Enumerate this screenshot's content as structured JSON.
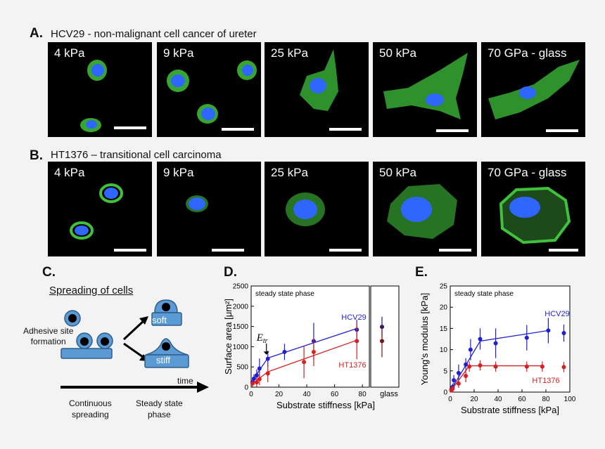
{
  "panelA": {
    "letter": "A.",
    "title": "HCV29 - non-malignant cell cancer of ureter",
    "tiles": [
      "4 kPa",
      "9 kPa",
      "25 kPa",
      "50 kPa",
      "70 GPa - glass"
    ]
  },
  "panelB": {
    "letter": "B.",
    "title": "HT1376 – transitional cell carcinoma",
    "tiles": [
      "4 kPa",
      "9 kPa",
      "25 kPa",
      "50 kPa",
      "70 GPa - glass"
    ]
  },
  "panelC": {
    "letter": "C.",
    "heading": "Spreading of cells",
    "adhesive": [
      "Adhesive site",
      "formation"
    ],
    "soft": "soft",
    "stiff": "stiff",
    "time": "time",
    "continuous": [
      "Continuous",
      "spreading"
    ],
    "steady": [
      "Steady state",
      "phase"
    ]
  },
  "panelD": {
    "letter": "D."
  },
  "panelE": {
    "letter": "E."
  },
  "colors": {
    "fluorescence_green": "#3fc23a",
    "nucleus_blue": "#2f66ff",
    "cell_diagram": "#5b9bd5",
    "hcv29": "#1f1fd0",
    "ht1376": "#d42020",
    "glass_hcv29": "#1a1a7a",
    "glass_ht1376": "#7a1414"
  },
  "chart_data": [
    {
      "type": "scatter",
      "panel": "D",
      "annotation": "steady state phase",
      "etr_label": "E",
      "etr_subscript": "tr",
      "xlabel": "Substrate stiffness [kPa]",
      "ylabel": "Surface area [μm²]",
      "xlim": [
        0,
        85
      ],
      "ylim": [
        0,
        2500
      ],
      "xticks": [
        0,
        20,
        40,
        60,
        80
      ],
      "yticks": [
        0,
        500,
        1000,
        1500,
        2000,
        2500
      ],
      "glass_label": "glass",
      "series": [
        {
          "name": "HCV29",
          "x": [
            1,
            2,
            4,
            6,
            12,
            24,
            45,
            76
          ],
          "y": [
            130,
            210,
            290,
            460,
            700,
            870,
            1140,
            1420
          ],
          "err": [
            90,
            110,
            150,
            250,
            200,
            200,
            450,
            250
          ],
          "fit": [
            [
              0,
              120
            ],
            [
              12,
              720
            ],
            [
              76,
              1450
            ]
          ],
          "glass": {
            "y": 1490,
            "err": 250
          }
        },
        {
          "name": "HT1376",
          "x": [
            1,
            4,
            6,
            12,
            38,
            45,
            76
          ],
          "y": [
            90,
            120,
            200,
            340,
            620,
            870,
            1140
          ],
          "err": [
            80,
            110,
            150,
            220,
            400,
            350,
            450
          ],
          "fit": [
            [
              0,
              60
            ],
            [
              12,
              380
            ],
            [
              76,
              1160
            ]
          ],
          "glass": {
            "y": 1140,
            "err": 400
          }
        }
      ]
    },
    {
      "type": "scatter",
      "panel": "E",
      "annotation": "steady state phase",
      "xlabel": "Substrate stiffness [kPa]",
      "ylabel": "Young's modulus [kPa]",
      "xlim": [
        0,
        100
      ],
      "ylim": [
        0,
        25
      ],
      "xticks": [
        0,
        20,
        40,
        60,
        80,
        100
      ],
      "yticks": [
        0,
        5,
        10,
        15,
        20,
        25
      ],
      "series": [
        {
          "name": "HCV29",
          "x": [
            1,
            2,
            3,
            7,
            13,
            17,
            25,
            38,
            64,
            82,
            95
          ],
          "y": [
            0.6,
            1.2,
            2.8,
            4.5,
            6.5,
            10.0,
            12.5,
            11.5,
            12.8,
            14.5,
            13.9
          ],
          "err": [
            0.5,
            0.8,
            1.2,
            2.0,
            1.5,
            2.5,
            2.5,
            3.5,
            3.0,
            3.0,
            2.0
          ],
          "fit": [
            [
              0,
              0.2
            ],
            [
              25,
              12.0
            ],
            [
              82,
              14.5
            ]
          ]
        },
        {
          "name": "HT1376",
          "x": [
            1,
            2,
            7,
            13,
            16,
            25,
            38,
            64,
            77,
            95
          ],
          "y": [
            0.4,
            0.8,
            2.0,
            3.8,
            6.0,
            6.3,
            6.0,
            6.0,
            6.0,
            5.9
          ],
          "err": [
            0.4,
            0.6,
            1.0,
            1.5,
            1.2,
            1.2,
            1.2,
            1.2,
            1.2,
            1.2
          ],
          "fit": [
            [
              0,
              0.1
            ],
            [
              16,
              6.2
            ],
            [
              77,
              6.2
            ]
          ]
        }
      ]
    }
  ]
}
